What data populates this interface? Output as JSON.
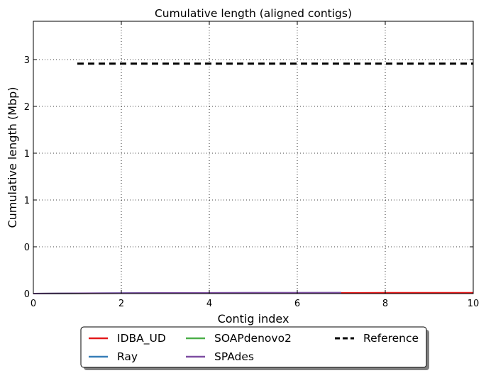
{
  "chart_data": {
    "type": "line",
    "title": "Cumulative length (aligned contigs)",
    "xlabel": "Contig index",
    "ylabel": "Cumulative length (Mbp)",
    "xlim": [
      0,
      10
    ],
    "ylim": [
      0,
      3.85
    ],
    "x_ticks": [
      "0",
      "2",
      "4",
      "6",
      "8",
      "10"
    ],
    "y_ticks": [
      "0",
      "0",
      "1",
      "1",
      "2",
      "3"
    ],
    "grid": true,
    "legend_placement": "bottom-center",
    "series": [
      {
        "name": "IDBA_UD",
        "color": "#e41a1c",
        "style": "solid",
        "points": [
          [
            0,
            0.0
          ],
          [
            1,
            0.003
          ],
          [
            2,
            0.005
          ],
          [
            3,
            0.007
          ],
          [
            4,
            0.008
          ],
          [
            5,
            0.009
          ],
          [
            6,
            0.01
          ],
          [
            7,
            0.011
          ],
          [
            8,
            0.012
          ],
          [
            9,
            0.012
          ],
          [
            10,
            0.013
          ]
        ]
      },
      {
        "name": "Ray",
        "color": "#377eb8",
        "style": "solid",
        "points": [
          [
            0,
            0.0
          ],
          [
            1,
            0.004
          ],
          [
            2,
            0.007
          ],
          [
            3,
            0.009
          ],
          [
            4,
            0.01
          ],
          [
            5,
            0.011
          ],
          [
            6,
            0.011
          ],
          [
            7,
            0.012
          ]
        ]
      },
      {
        "name": "SOAPdenovo2",
        "color": "#4daf4a",
        "style": "solid",
        "points": [
          [
            0,
            0.0
          ],
          [
            1,
            0.003
          ],
          [
            2,
            0.005
          ],
          [
            3,
            0.007
          ],
          [
            4,
            0.008
          ],
          [
            5,
            0.009
          ],
          [
            6,
            0.01
          ]
        ]
      },
      {
        "name": "SPAdes",
        "color": "#7e4ea1",
        "style": "solid",
        "points": [
          [
            0,
            0.0
          ],
          [
            1,
            0.005
          ],
          [
            2,
            0.008
          ],
          [
            3,
            0.01
          ],
          [
            4,
            0.011
          ],
          [
            5,
            0.012
          ],
          [
            6,
            0.012
          ],
          [
            7,
            0.013
          ]
        ]
      },
      {
        "name": "Reference",
        "color": "#000000",
        "style": "dashed",
        "points": [
          [
            1,
            3.25
          ],
          [
            10,
            3.25
          ]
        ]
      }
    ]
  }
}
